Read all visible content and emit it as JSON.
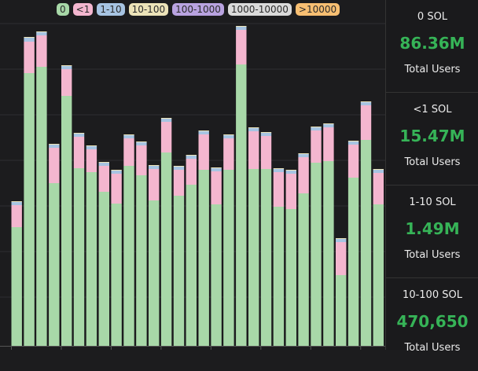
{
  "legend": [
    {
      "label": "0",
      "color": "#a8d8a8"
    },
    {
      "label": "<1",
      "color": "#f4b6cf"
    },
    {
      "label": "1-10",
      "color": "#a7c4e2"
    },
    {
      "label": "10-100",
      "color": "#ece3b8"
    },
    {
      "label": "100-1000",
      "color": "#b9a3e0"
    },
    {
      "label": "1000-10000",
      "color": "#dadada"
    },
    {
      "label": ">10000",
      "color": "#f8bf72"
    }
  ],
  "stats": [
    {
      "label": "0 SOL",
      "value": "86.36M",
      "caption": "Total Users"
    },
    {
      "label": "<1 SOL",
      "value": "15.47M",
      "caption": "Total Users"
    },
    {
      "label": "1-10 SOL",
      "value": "1.49M",
      "caption": "Total Users"
    },
    {
      "label": "10-100 SOL",
      "value": "470,650",
      "caption": "Total Users"
    }
  ],
  "chart_data": {
    "type": "bar",
    "stacked": true,
    "grid": true,
    "series": [
      {
        "name": "0",
        "color": "#a8d8a8",
        "values": [
          151,
          347,
          355,
          207,
          318,
          226,
          221,
          196,
          181,
          229,
          217,
          185,
          246,
          191,
          205,
          224,
          180,
          224,
          358,
          225,
          225,
          177,
          174,
          194,
          233,
          235,
          90,
          214,
          262,
          180
        ]
      },
      {
        "name": "<1",
        "color": "#f4b6cf",
        "values": [
          28,
          40,
          40,
          45,
          34,
          40,
          29,
          33,
          38,
          35,
          38,
          40,
          39,
          33,
          33,
          45,
          42,
          40,
          44,
          48,
          42,
          44,
          45,
          46,
          41,
          43,
          42,
          42,
          44,
          40
        ]
      },
      {
        "name": "1-10",
        "color": "#a7c4e2",
        "values": [
          4,
          5,
          4,
          4,
          4,
          4,
          4,
          4,
          4,
          4,
          4,
          4,
          4,
          4,
          4,
          4,
          4,
          4,
          4,
          4,
          4,
          4,
          4,
          4,
          4,
          4,
          4,
          4,
          4,
          4
        ]
      },
      {
        "name": "10-100",
        "color": "#ece3b8",
        "values": [
          1,
          1,
          1,
          1,
          1,
          1,
          1,
          1,
          1,
          1,
          1,
          1,
          1,
          1,
          1,
          1,
          1,
          1,
          1,
          1,
          1,
          1,
          1,
          1,
          1,
          1,
          1,
          1,
          1,
          1
        ]
      }
    ]
  }
}
